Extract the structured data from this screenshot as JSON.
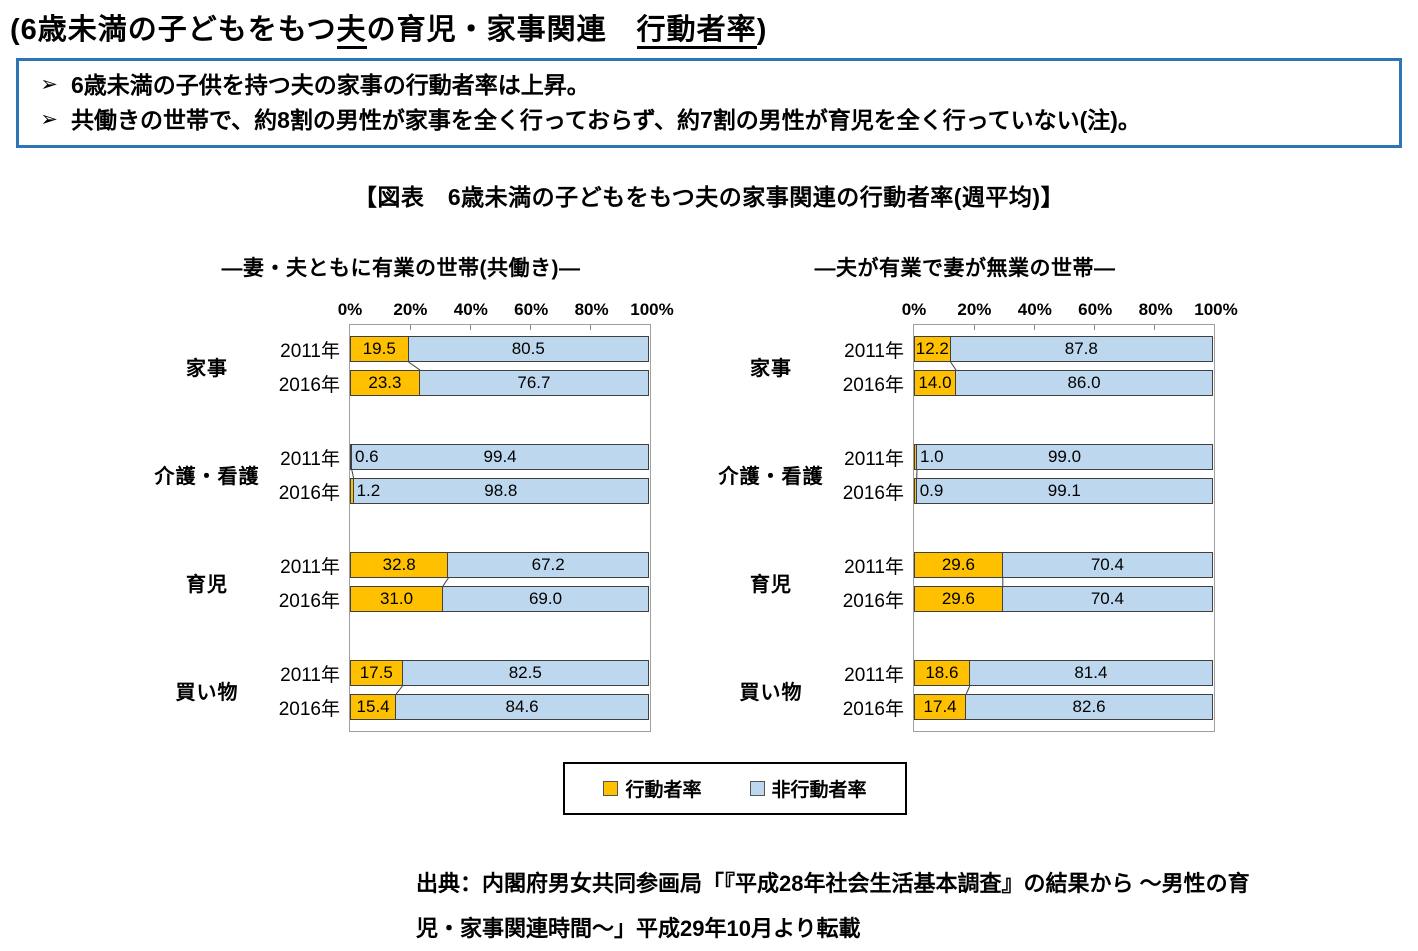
{
  "page_title": {
    "prefix": "(6歳未満の子どもをもつ",
    "underlined_1": "夫",
    "middle": "の育児・家事関連　",
    "underlined_2": "行動者率",
    "suffix": ")"
  },
  "callout": {
    "bullet": "➢",
    "items": [
      "6歳未満の子供を持つ夫の家事の行動者率は上昇。",
      "共働きの世帯で、約8割の男性が家事を全く行っておらず、約7割の男性が育児を全く行っていない(注)。"
    ],
    "border_color": "#2E75B6"
  },
  "figure_title": "【図表　6歳未満の子どもをもつ夫の家事関連の行動者率(週平均)】",
  "colors": {
    "active": "#FFC000",
    "inactive": "#BDD7EE",
    "bar_border": "#404040",
    "plot_border": "#A0A0A0",
    "connector": "#404040"
  },
  "legend": {
    "items": [
      {
        "label": "行動者率",
        "color": "#FFC000"
      },
      {
        "label": "非行動者率",
        "color": "#BDD7EE"
      }
    ]
  },
  "source": {
    "line1": "出典：内閣府男女共同参画局「『平成28年社会生活基本調査』の結果から ～男性の育",
    "line2": "児・家事関連時間～」平成29年10月より転載"
  },
  "chart_data": [
    {
      "type": "bar",
      "stacked": true,
      "orientation": "horizontal",
      "title": "―妻・夫ともに有業の世帯(共働き)―",
      "x_ticks": [
        "0%",
        "20%",
        "40%",
        "60%",
        "80%",
        "100%"
      ],
      "xlim": [
        0,
        100
      ],
      "series_names": [
        "行動者率",
        "非行動者率"
      ],
      "groups": [
        {
          "category": "家事",
          "rows": [
            {
              "year": "2011年",
              "active": 19.5,
              "inactive": 80.5
            },
            {
              "year": "2016年",
              "active": 23.3,
              "inactive": 76.7
            }
          ]
        },
        {
          "category": "介護・看護",
          "rows": [
            {
              "year": "2011年",
              "active": 0.6,
              "inactive": 99.4
            },
            {
              "year": "2016年",
              "active": 1.2,
              "inactive": 98.8
            }
          ]
        },
        {
          "category": "育児",
          "rows": [
            {
              "year": "2011年",
              "active": 32.8,
              "inactive": 67.2
            },
            {
              "year": "2016年",
              "active": 31.0,
              "inactive": 69.0
            }
          ]
        },
        {
          "category": "買い物",
          "rows": [
            {
              "year": "2011年",
              "active": 17.5,
              "inactive": 82.5
            },
            {
              "year": "2016年",
              "active": 15.4,
              "inactive": 84.6
            }
          ]
        }
      ]
    },
    {
      "type": "bar",
      "stacked": true,
      "orientation": "horizontal",
      "title": "―夫が有業で妻が無業の世帯―",
      "x_ticks": [
        "0%",
        "20%",
        "40%",
        "60%",
        "80%",
        "100%"
      ],
      "xlim": [
        0,
        100
      ],
      "series_names": [
        "行動者率",
        "非行動者率"
      ],
      "groups": [
        {
          "category": "家事",
          "rows": [
            {
              "year": "2011年",
              "active": 12.2,
              "inactive": 87.8
            },
            {
              "year": "2016年",
              "active": 14.0,
              "inactive": 86.0
            }
          ]
        },
        {
          "category": "介護・看護",
          "rows": [
            {
              "year": "2011年",
              "active": 1.0,
              "inactive": 99.0
            },
            {
              "year": "2016年",
              "active": 0.9,
              "inactive": 99.1
            }
          ]
        },
        {
          "category": "育児",
          "rows": [
            {
              "year": "2011年",
              "active": 29.6,
              "inactive": 70.4
            },
            {
              "year": "2016年",
              "active": 29.6,
              "inactive": 70.4
            }
          ]
        },
        {
          "category": "買い物",
          "rows": [
            {
              "year": "2011年",
              "active": 18.6,
              "inactive": 81.4
            },
            {
              "year": "2016年",
              "active": 17.4,
              "inactive": 82.6
            }
          ]
        }
      ]
    }
  ]
}
